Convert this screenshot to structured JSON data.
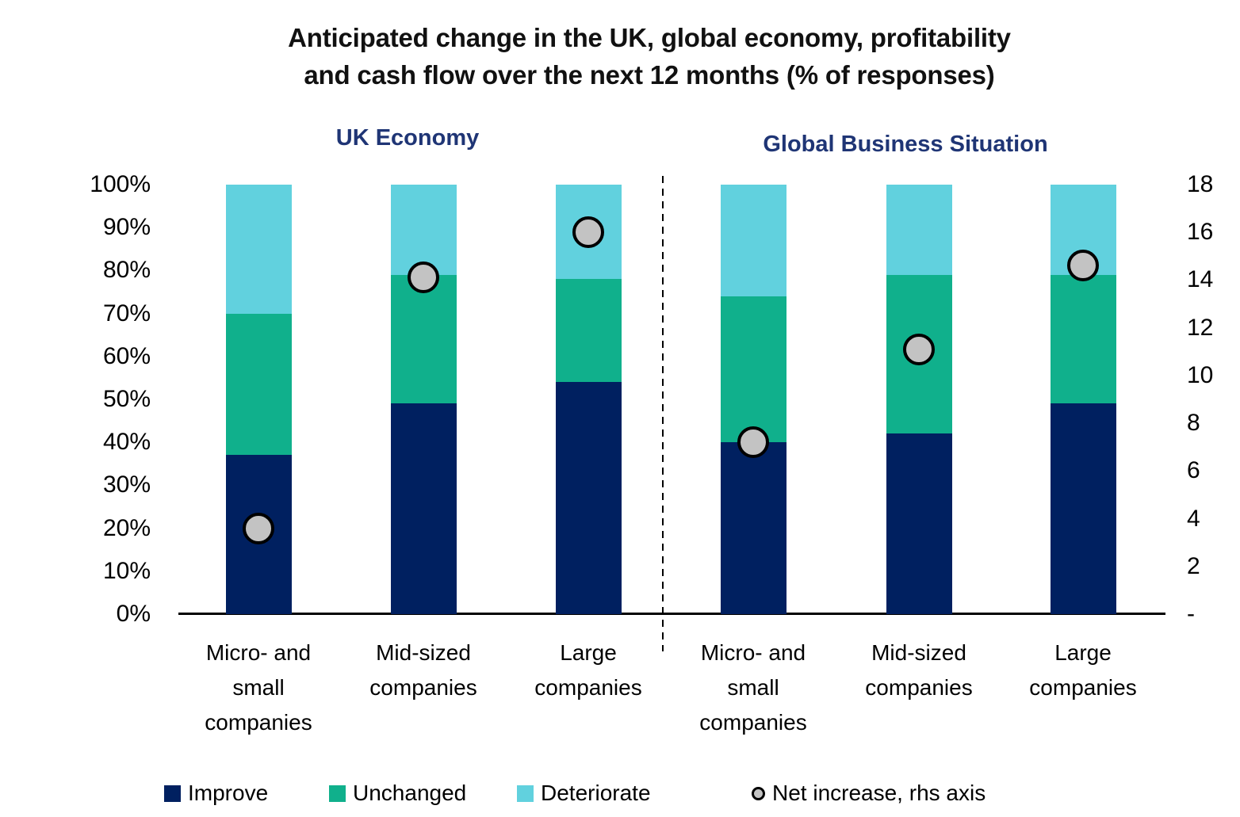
{
  "title": {
    "lines": [
      "Anticipated change in the UK, global economy, profitability",
      "and cash flow over the next 12 months (% of responses)"
    ]
  },
  "chart_data": {
    "type": "bar",
    "variant": "stacked-100pct-columns-with-scatter-overlay",
    "grid": false,
    "legend_position": "bottom",
    "groups": [
      {
        "title": "UK Economy",
        "categories": [
          "Micro- and\nsmall\ncompanies",
          "Mid-sized\ncompanies",
          "Large\ncompanies"
        ]
      },
      {
        "title": "Global Business Situation",
        "categories": [
          "Micro- and\nsmall\ncompanies",
          "Mid-sized\ncompanies",
          "Large\ncompanies"
        ]
      }
    ],
    "series": [
      {
        "name": "Improve",
        "color": "#002060",
        "values": [
          37,
          49,
          54,
          40,
          42,
          49
        ]
      },
      {
        "name": "Unchanged",
        "color": "#10B08C",
        "values": [
          33,
          30,
          24,
          34,
          37,
          30
        ]
      },
      {
        "name": "Deteriorate",
        "color": "#61D1DE",
        "values": [
          30,
          21,
          22,
          26,
          21,
          21
        ]
      }
    ],
    "scatter": {
      "name": "Net increase, rhs axis",
      "axis": "right",
      "fill": "#C3C3C3",
      "stroke": "#000000",
      "values": [
        3.6,
        14.1,
        16,
        7.2,
        11.1,
        14.6
      ]
    },
    "left_axis": {
      "min": 0,
      "max": 100,
      "step": 10,
      "ticks": [
        "100%",
        "90%",
        "80%",
        "70%",
        "60%",
        "50%",
        "40%",
        "30%",
        "20%",
        "10%",
        "0%"
      ]
    },
    "right_axis": {
      "min": 0,
      "max": 18,
      "step": 2,
      "ticks": [
        "18",
        "16",
        "14",
        "12",
        "10",
        "8",
        "6",
        "4",
        "2",
        "-"
      ]
    },
    "separator": "dashed vertical line between UK and Global groups"
  },
  "legend": {
    "items": [
      {
        "label": "Improve",
        "swatch": "square",
        "color": "#002060"
      },
      {
        "label": "Unchanged",
        "swatch": "square",
        "color": "#10B08C"
      },
      {
        "label": "Deteriorate",
        "swatch": "square",
        "color": "#61D1DE"
      },
      {
        "label": "Net increase, rhs axis",
        "swatch": "circle",
        "color": "#C3C3C3"
      }
    ]
  },
  "colors": {
    "title_text": "#111111",
    "subtitle_text": "#1F3575",
    "axis_text": "#000000",
    "axis_line": "#000000",
    "marker_fill": "#C3C3C3",
    "marker_stroke": "#000000"
  }
}
